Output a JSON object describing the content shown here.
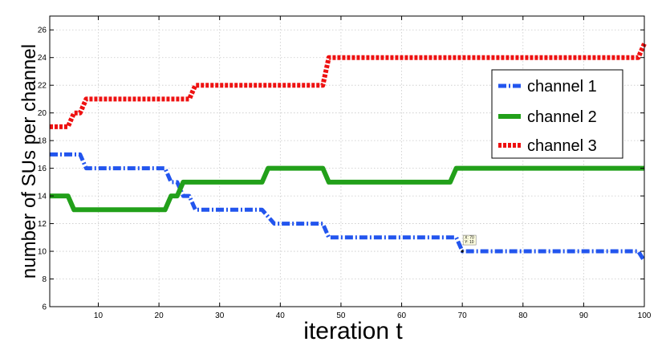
{
  "chart_data": {
    "type": "line",
    "xlabel": "iteration t",
    "ylabel": "number of SUs per channel",
    "xlim": [
      2,
      100
    ],
    "ylim": [
      6,
      27
    ],
    "xticks": [
      10,
      20,
      30,
      40,
      50,
      60,
      70,
      80,
      90,
      100
    ],
    "yticks": [
      6,
      8,
      10,
      12,
      14,
      16,
      18,
      20,
      22,
      24,
      26
    ],
    "grid": true,
    "legend_position": "top-right",
    "series": [
      {
        "name": "channel 1",
        "color": "#2255ee",
        "style": "dash-dot",
        "x": [
          2,
          7,
          8,
          21,
          22,
          23,
          24,
          25,
          26,
          37,
          39,
          47,
          48,
          69,
          70,
          99,
          100
        ],
        "y": [
          17,
          17,
          16,
          16,
          15,
          15,
          14,
          14,
          13,
          13,
          12,
          12,
          11,
          11,
          10,
          10,
          9.3
        ]
      },
      {
        "name": "channel 2",
        "color": "#22a01a",
        "style": "solid",
        "x": [
          2,
          5,
          6,
          21,
          22,
          23,
          24,
          37,
          38,
          47,
          48,
          68,
          69,
          100
        ],
        "y": [
          14,
          14,
          13,
          13,
          14,
          14,
          15,
          15,
          16,
          16,
          15,
          15,
          16,
          16
        ]
      },
      {
        "name": "channel 3",
        "color": "#ee1111",
        "style": "dotted",
        "x": [
          2,
          5,
          6,
          7,
          8,
          25,
          26,
          47,
          48,
          99,
          100
        ],
        "y": [
          19,
          19,
          20,
          20,
          21,
          21,
          22,
          22,
          24,
          24,
          25
        ]
      }
    ],
    "datatip": {
      "x_text": "X: 70",
      "y_text": "Y: 10",
      "x": 70,
      "y": 10
    }
  }
}
